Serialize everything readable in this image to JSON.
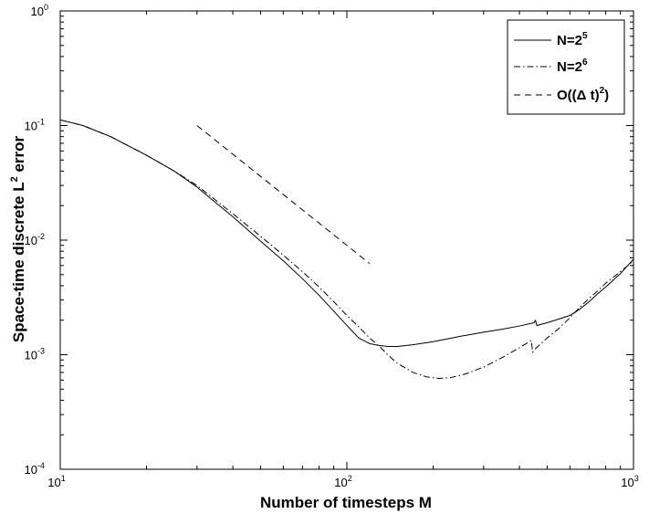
{
  "chart_data": {
    "type": "line",
    "xlabel": "Number of timesteps M",
    "ylabel_main": "Space-time discrete L",
    "ylabel_sup": "2",
    "ylabel_tail": " error",
    "x_scale": "log",
    "y_scale": "log",
    "xlim": [
      10,
      1000
    ],
    "ylim": [
      0.0001,
      1
    ],
    "x_ticks": [
      {
        "value": 10,
        "base": "10",
        "exp": "1"
      },
      {
        "value": 100,
        "base": "10",
        "exp": "2"
      },
      {
        "value": 1000,
        "base": "10",
        "exp": "3"
      }
    ],
    "y_ticks": [
      {
        "value": 0.0001,
        "base": "10",
        "exp": "-4"
      },
      {
        "value": 0.001,
        "base": "10",
        "exp": "-3"
      },
      {
        "value": 0.01,
        "base": "10",
        "exp": "-2"
      },
      {
        "value": 0.1,
        "base": "10",
        "exp": "-1"
      },
      {
        "value": 1,
        "base": "10",
        "exp": "0"
      }
    ],
    "grid": false,
    "legend_position": "top-right",
    "series": [
      {
        "legend_main": "N=2",
        "legend_sup": "5",
        "dash": "solid",
        "color": "#000000",
        "x": [
          10,
          12,
          15,
          20,
          25,
          30,
          40,
          50,
          60,
          70,
          80,
          90,
          100,
          110,
          120,
          130,
          140,
          150,
          170,
          200,
          250,
          300,
          350,
          400,
          450,
          455,
          460,
          500,
          550,
          600,
          650,
          700,
          750,
          800,
          900,
          1000
        ],
        "y": [
          0.112,
          0.1,
          0.08,
          0.055,
          0.04,
          0.029,
          0.016,
          0.0098,
          0.0066,
          0.0046,
          0.0033,
          0.0024,
          0.0018,
          0.0014,
          0.00125,
          0.0012,
          0.00118,
          0.00118,
          0.00122,
          0.0013,
          0.00145,
          0.00157,
          0.00167,
          0.00178,
          0.0019,
          0.002,
          0.0018,
          0.0019,
          0.00205,
          0.0022,
          0.0025,
          0.0029,
          0.0034,
          0.0039,
          0.0051,
          0.0068
        ]
      },
      {
        "legend_main": "N=2",
        "legend_sup": "6",
        "dash": "dashdot",
        "color": "#000000",
        "x": [
          10,
          12,
          15,
          20,
          25,
          30,
          40,
          50,
          60,
          70,
          80,
          90,
          100,
          110,
          120,
          130,
          140,
          150,
          170,
          190,
          210,
          230,
          260,
          300,
          350,
          400,
          440,
          445,
          450,
          500,
          550,
          600,
          650,
          700,
          750,
          800,
          900,
          1000
        ],
        "y": [
          0.112,
          0.1,
          0.08,
          0.055,
          0.04,
          0.03,
          0.017,
          0.0108,
          0.0074,
          0.0053,
          0.0039,
          0.0029,
          0.0022,
          0.00175,
          0.0014,
          0.00118,
          0.00098,
          0.00084,
          0.0007,
          0.00064,
          0.00062,
          0.00063,
          0.00068,
          0.00078,
          0.00095,
          0.00115,
          0.00133,
          0.00105,
          0.0011,
          0.0014,
          0.0017,
          0.0021,
          0.0026,
          0.0031,
          0.0036,
          0.0042,
          0.0053,
          0.0066
        ]
      },
      {
        "legend_main": "O((Δ t)",
        "legend_sup": "2",
        "legend_tail": ")",
        "dash": "dashed",
        "color": "#000000",
        "x": [
          30,
          120
        ],
        "y": [
          0.1,
          0.00625
        ]
      }
    ]
  }
}
